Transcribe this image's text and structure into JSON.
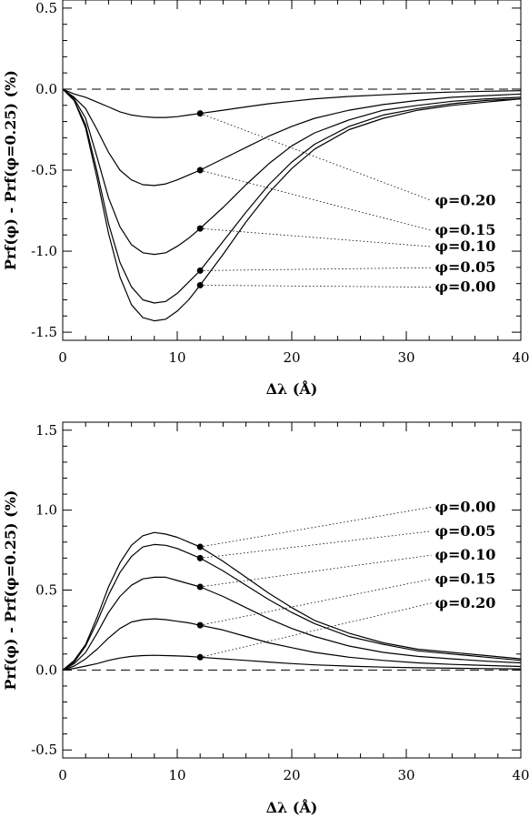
{
  "chart_data": [
    {
      "type": "line",
      "xlabel": "Δλ (Å)",
      "ylabel": "Prf(φ) - Prf(φ=0.25) (%)",
      "xlim": [
        0,
        40
      ],
      "ylim": [
        -1.55,
        0.55
      ],
      "xticks": [
        0,
        10,
        20,
        30,
        40
      ],
      "xtick_labels": [
        "0",
        "10",
        "20",
        "30",
        "40"
      ],
      "yticks": [
        -1.5,
        -1.0,
        -0.5,
        0.0,
        0.5
      ],
      "ytick_labels": [
        "-1.5",
        "-1.0",
        "-0.5",
        "0.0",
        "0.5"
      ],
      "reference_line": 0,
      "marker_x": 12,
      "series": [
        {
          "name": "φ=0.20",
          "label_pos": [
            32.5,
            -0.715
          ],
          "x": [
            0,
            1,
            2,
            3,
            4,
            5,
            6,
            7,
            8,
            9,
            10,
            11,
            12,
            14,
            16,
            18,
            20,
            22,
            25,
            28,
            31,
            34,
            37,
            40
          ],
          "y": [
            0,
            -0.03,
            -0.05,
            -0.08,
            -0.11,
            -0.14,
            -0.16,
            -0.17,
            -0.175,
            -0.175,
            -0.17,
            -0.16,
            -0.15,
            -0.13,
            -0.11,
            -0.09,
            -0.075,
            -0.06,
            -0.045,
            -0.035,
            -0.025,
            -0.018,
            -0.013,
            -0.01
          ]
        },
        {
          "name": "φ=0.15",
          "label_pos": [
            32.5,
            -0.9
          ],
          "x": [
            0,
            1,
            2,
            3,
            4,
            5,
            6,
            7,
            8,
            9,
            10,
            11,
            12,
            14,
            16,
            18,
            20,
            22,
            25,
            28,
            31,
            34,
            37,
            40
          ],
          "y": [
            0,
            -0.05,
            -0.12,
            -0.25,
            -0.39,
            -0.5,
            -0.56,
            -0.59,
            -0.595,
            -0.585,
            -0.56,
            -0.53,
            -0.5,
            -0.43,
            -0.36,
            -0.29,
            -0.23,
            -0.18,
            -0.13,
            -0.095,
            -0.07,
            -0.05,
            -0.04,
            -0.03
          ]
        },
        {
          "name": "φ=0.10",
          "label_pos": [
            32.5,
            -1.0
          ],
          "x": [
            0,
            1,
            2,
            3,
            4,
            5,
            6,
            7,
            8,
            9,
            10,
            11,
            12,
            14,
            16,
            18,
            20,
            22,
            25,
            28,
            31,
            34,
            37,
            40
          ],
          "y": [
            0,
            -0.06,
            -0.18,
            -0.42,
            -0.67,
            -0.85,
            -0.96,
            -1.01,
            -1.02,
            -1.01,
            -0.97,
            -0.92,
            -0.86,
            -0.73,
            -0.59,
            -0.46,
            -0.35,
            -0.27,
            -0.19,
            -0.13,
            -0.1,
            -0.075,
            -0.06,
            -0.05
          ]
        },
        {
          "name": "φ=0.05",
          "label_pos": [
            32.5,
            -1.13
          ],
          "x": [
            0,
            1,
            2,
            3,
            4,
            5,
            6,
            7,
            8,
            9,
            10,
            11,
            12,
            14,
            16,
            18,
            20,
            22,
            25,
            28,
            31,
            34,
            37,
            40
          ],
          "y": [
            0,
            -0.07,
            -0.22,
            -0.51,
            -0.83,
            -1.07,
            -1.22,
            -1.3,
            -1.32,
            -1.31,
            -1.26,
            -1.19,
            -1.12,
            -0.94,
            -0.76,
            -0.59,
            -0.45,
            -0.34,
            -0.23,
            -0.16,
            -0.12,
            -0.09,
            -0.07,
            -0.06
          ]
        },
        {
          "name": "φ=0.00",
          "label_pos": [
            32.5,
            -1.25
          ],
          "x": [
            0,
            1,
            2,
            3,
            4,
            5,
            6,
            7,
            8,
            9,
            10,
            11,
            12,
            14,
            16,
            18,
            20,
            22,
            25,
            28,
            31,
            34,
            37,
            40
          ],
          "y": [
            0,
            -0.07,
            -0.24,
            -0.55,
            -0.89,
            -1.16,
            -1.33,
            -1.41,
            -1.43,
            -1.42,
            -1.37,
            -1.3,
            -1.21,
            -1.02,
            -0.82,
            -0.64,
            -0.49,
            -0.37,
            -0.25,
            -0.18,
            -0.13,
            -0.1,
            -0.08,
            -0.06
          ]
        }
      ]
    },
    {
      "type": "line",
      "xlabel": "Δλ (Å)",
      "ylabel": "Prf(φ) - Prf(φ=0.25) (%)",
      "xlim": [
        0,
        40
      ],
      "ylim": [
        -0.55,
        1.55
      ],
      "xticks": [
        0,
        10,
        20,
        30,
        40
      ],
      "xtick_labels": [
        "0",
        "10",
        "20",
        "30",
        "40"
      ],
      "yticks": [
        -0.5,
        0.0,
        0.5,
        1.0,
        1.5
      ],
      "ytick_labels": [
        "-0.5",
        "0.0",
        "0.5",
        "1.0",
        "1.5"
      ],
      "reference_line": 0,
      "marker_x": 12,
      "series": [
        {
          "name": "φ=0.00",
          "label_pos": [
            32.5,
            0.99
          ],
          "x": [
            0,
            1,
            2,
            3,
            4,
            5,
            6,
            7,
            8,
            9,
            10,
            11,
            12,
            14,
            16,
            18,
            20,
            22,
            25,
            28,
            31,
            34,
            37,
            40
          ],
          "y": [
            0,
            0.06,
            0.16,
            0.33,
            0.52,
            0.67,
            0.78,
            0.84,
            0.86,
            0.85,
            0.83,
            0.8,
            0.77,
            0.68,
            0.58,
            0.48,
            0.39,
            0.31,
            0.23,
            0.17,
            0.13,
            0.11,
            0.09,
            0.07
          ]
        },
        {
          "name": "φ=0.05",
          "label_pos": [
            32.5,
            0.84
          ],
          "x": [
            0,
            1,
            2,
            3,
            4,
            5,
            6,
            7,
            8,
            9,
            10,
            11,
            12,
            14,
            16,
            18,
            20,
            22,
            25,
            28,
            31,
            34,
            37,
            40
          ],
          "y": [
            0,
            0.05,
            0.15,
            0.3,
            0.47,
            0.61,
            0.71,
            0.77,
            0.785,
            0.78,
            0.76,
            0.73,
            0.7,
            0.62,
            0.53,
            0.44,
            0.36,
            0.29,
            0.21,
            0.16,
            0.12,
            0.1,
            0.08,
            0.06
          ]
        },
        {
          "name": "φ=0.10",
          "label_pos": [
            32.5,
            0.69
          ],
          "x": [
            0,
            1,
            2,
            3,
            4,
            5,
            6,
            7,
            8,
            9,
            10,
            11,
            12,
            14,
            16,
            18,
            20,
            22,
            25,
            28,
            31,
            34,
            37,
            40
          ],
          "y": [
            0,
            0.04,
            0.11,
            0.23,
            0.36,
            0.46,
            0.53,
            0.57,
            0.58,
            0.58,
            0.56,
            0.54,
            0.52,
            0.46,
            0.39,
            0.32,
            0.26,
            0.21,
            0.15,
            0.11,
            0.085,
            0.07,
            0.055,
            0.045
          ]
        },
        {
          "name": "φ=0.15",
          "label_pos": [
            32.5,
            0.54
          ],
          "x": [
            0,
            1,
            2,
            3,
            4,
            5,
            6,
            7,
            8,
            9,
            10,
            11,
            12,
            14,
            16,
            18,
            20,
            22,
            25,
            28,
            31,
            34,
            37,
            40
          ],
          "y": [
            0,
            0.025,
            0.07,
            0.13,
            0.2,
            0.26,
            0.3,
            0.315,
            0.32,
            0.315,
            0.305,
            0.295,
            0.28,
            0.25,
            0.21,
            0.17,
            0.14,
            0.11,
            0.08,
            0.06,
            0.045,
            0.035,
            0.028,
            0.022
          ]
        },
        {
          "name": "φ=0.20",
          "label_pos": [
            32.5,
            0.39
          ],
          "x": [
            0,
            1,
            2,
            3,
            4,
            5,
            6,
            7,
            8,
            9,
            10,
            11,
            12,
            14,
            16,
            18,
            20,
            22,
            25,
            28,
            31,
            34,
            37,
            40
          ],
          "y": [
            0,
            0.01,
            0.025,
            0.04,
            0.06,
            0.075,
            0.085,
            0.09,
            0.092,
            0.09,
            0.088,
            0.085,
            0.08,
            0.07,
            0.06,
            0.05,
            0.04,
            0.032,
            0.024,
            0.018,
            0.014,
            0.011,
            0.009,
            0.007
          ]
        }
      ]
    }
  ]
}
